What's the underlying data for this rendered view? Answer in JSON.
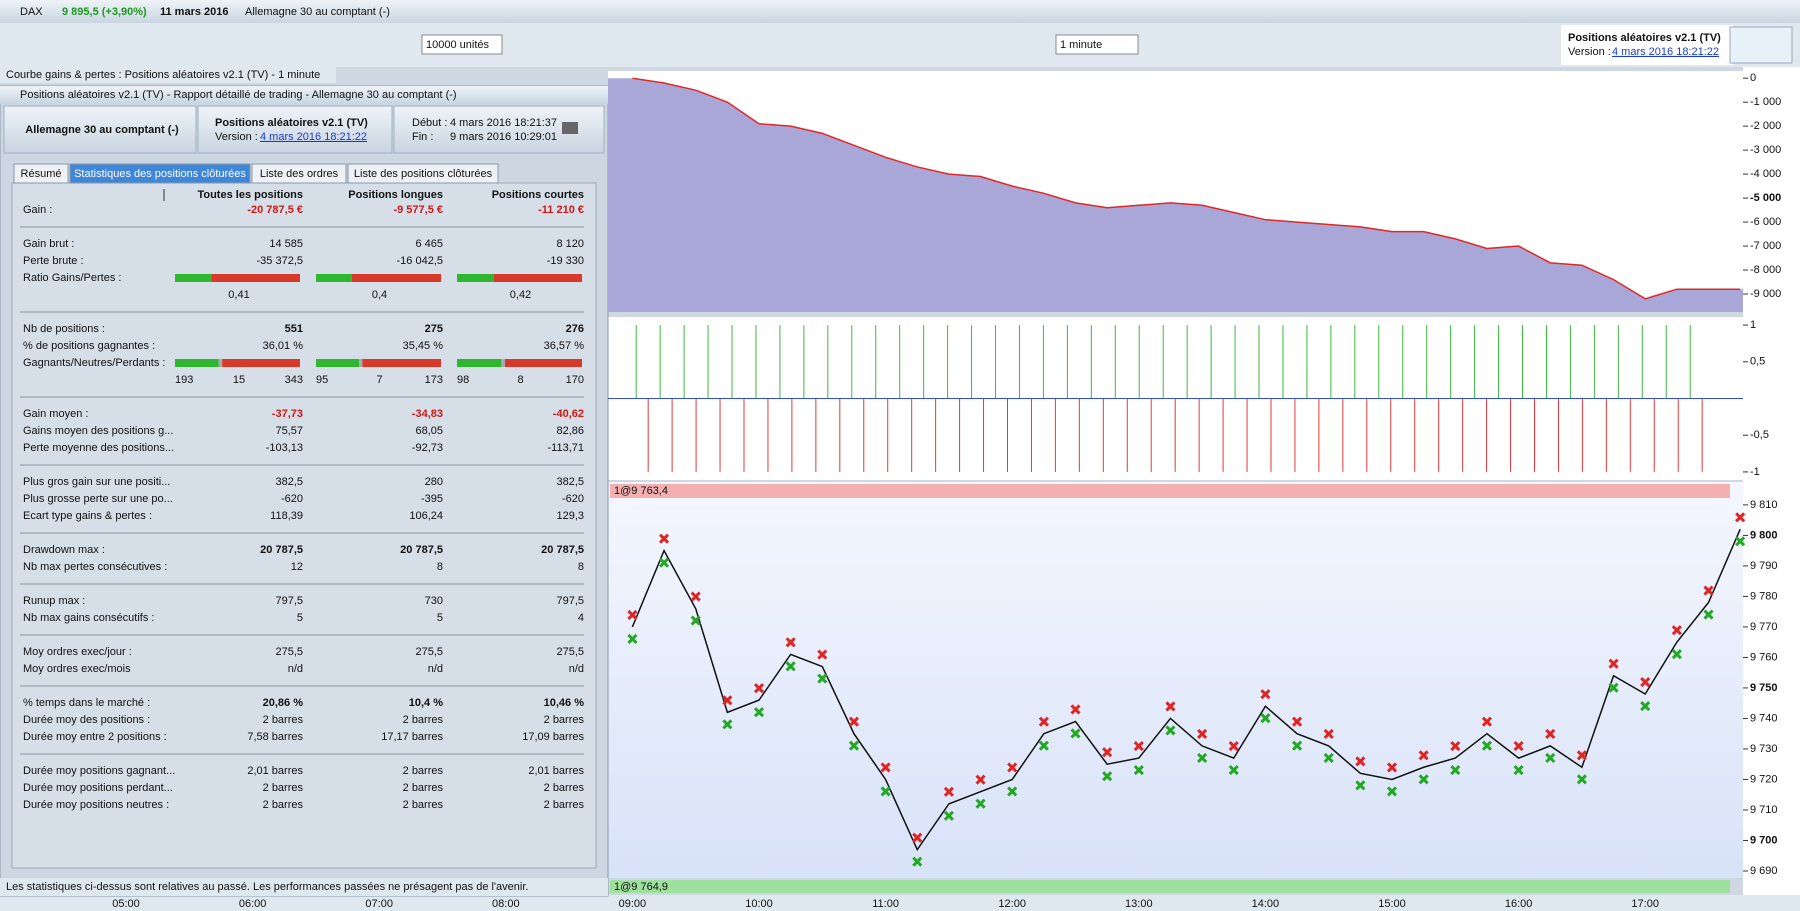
{
  "title_bar": {
    "symbol": "DAX",
    "quote": "9 895,5 (+3,90%)",
    "date": "11 mars 2016",
    "instrument": "Allemagne 30 au comptant (-)"
  },
  "toolbar": {
    "quantity": "10000 unités",
    "timeframe": "1 minute",
    "system": {
      "name": "Positions aléatoires v2.1 (TV)",
      "version_label": "Version :",
      "version": "4 mars 2016 18:21:22"
    }
  },
  "chart_tab": "Courbe gains & pertes : Positions aléatoires v2.1 (TV) - 1 minute",
  "report": {
    "title": "Positions aléatoires v2.1 (TV) - Rapport détaillé de trading - Allemagne 30 au comptant (-)",
    "header": {
      "instrument": "Allemagne 30 au comptant (-)",
      "system": "Positions aléatoires v2.1 (TV)",
      "version_label": "Version :",
      "version": "4 mars 2016 18:21:22",
      "start_label": "Début :",
      "start": "4 mars 2016 18:21:37",
      "end_label": "Fin :",
      "end": "9 mars 2016 10:29:01"
    },
    "tabs": [
      "Résumé",
      "Statistiques des positions clôturées",
      "Liste des ordres",
      "Liste des positions clôturées"
    ],
    "columns": [
      "Toutes les positions",
      "Positions longues",
      "Positions courtes"
    ],
    "groups": [
      [
        {
          "label": "Gain :",
          "values": [
            "-20 787,5 €",
            "-9 577,5 €",
            "-11 210 €"
          ]
        }
      ],
      [
        {
          "label": "Gain brut :",
          "values": [
            "14 585",
            "6 465",
            "8 120"
          ]
        },
        {
          "label": "Perte brute :",
          "values": [
            "-35 372,5",
            "-16 042,5",
            "-19 330"
          ]
        },
        {
          "label": "Ratio Gains/Pertes :",
          "ratio": [
            "0,41",
            "0,4",
            "0,42"
          ]
        }
      ],
      [
        {
          "label": "Nb de positions :",
          "values": [
            "551",
            "275",
            "276"
          ]
        },
        {
          "label": "% de positions gagnantes :",
          "values": [
            "36,01 %",
            "35,45 %",
            "36,57 %"
          ]
        },
        {
          "label": "Gagnants/Neutres/Perdants :",
          "counts": [
            [
              "193",
              "15",
              "343"
            ],
            [
              "95",
              "7",
              "173"
            ],
            [
              "98",
              "8",
              "170"
            ]
          ]
        }
      ],
      [
        {
          "label": "Gain moyen :",
          "values": [
            "-37,73",
            "-34,83",
            "-40,62"
          ]
        },
        {
          "label": "Gains moyen des positions g...",
          "values": [
            "75,57",
            "68,05",
            "82,86"
          ]
        },
        {
          "label": "Perte moyenne des positions...",
          "values": [
            "-103,13",
            "-92,73",
            "-113,71"
          ]
        }
      ],
      [
        {
          "label": "Plus gros gain sur une positi...",
          "values": [
            "382,5",
            "280",
            "382,5"
          ]
        },
        {
          "label": "Plus grosse perte sur une po...",
          "values": [
            "-620",
            "-395",
            "-620"
          ]
        },
        {
          "label": "Ecart type gains & pertes :",
          "values": [
            "118,39",
            "106,24",
            "129,3"
          ]
        }
      ],
      [
        {
          "label": "Drawdown max :",
          "values": [
            "20 787,5",
            "20 787,5",
            "20 787,5"
          ]
        },
        {
          "label": "Nb max pertes consécutives :",
          "values": [
            "12",
            "8",
            "8"
          ]
        }
      ],
      [
        {
          "label": "Runup max :",
          "values": [
            "797,5",
            "730",
            "797,5"
          ]
        },
        {
          "label": "Nb max gains consécutifs :",
          "values": [
            "5",
            "5",
            "4"
          ]
        }
      ],
      [
        {
          "label": "Moy ordres exec/jour :",
          "values": [
            "275,5",
            "275,5",
            "275,5"
          ]
        },
        {
          "label": "Moy ordres exec/mois",
          "values": [
            "n/d",
            "n/d",
            "n/d"
          ]
        }
      ],
      [
        {
          "label": "% temps dans le marché :",
          "values": [
            "20,86 %",
            "10,4 %",
            "10,46 %"
          ]
        },
        {
          "label": "Durée moy des positions :",
          "values": [
            "2 barres",
            "2 barres",
            "2 barres"
          ]
        },
        {
          "label": "Durée moy entre 2 positions :",
          "values": [
            "7,58 barres",
            "17,17 barres",
            "17,09 barres"
          ]
        }
      ],
      [
        {
          "label": "Durée moy positions gagnant...",
          "values": [
            "2,01 barres",
            "2 barres",
            "2,01 barres"
          ]
        },
        {
          "label": "Durée moy positions perdant...",
          "values": [
            "2 barres",
            "2 barres",
            "2 barres"
          ]
        },
        {
          "label": "Durée moy positions neutres :",
          "values": [
            "2 barres",
            "2 barres",
            "2 barres"
          ]
        }
      ]
    ],
    "footer": "Les statistiques ci-dessus sont relatives au passé. Les performances passées ne présagent pas de l'avenir."
  },
  "charts": {
    "equity": {
      "ylim": [
        -9750,
        300
      ],
      "yticks": [
        0,
        {
          "value": -1000,
          "label": "-1 000"
        },
        {
          "value": -2000,
          "label": "-2 000"
        },
        {
          "value": -3000,
          "label": "-3 000"
        },
        {
          "value": -4000,
          "label": "-4 000"
        },
        {
          "value": -5000,
          "label": "-5 000"
        },
        {
          "value": -6000,
          "label": "-6 000"
        },
        {
          "value": -7000,
          "label": "-7 000"
        },
        {
          "value": -8000,
          "label": "-8 000"
        },
        {
          "value": -9000,
          "label": "-9 000"
        }
      ],
      "values": [
        0,
        -200,
        -500,
        -1000,
        -1900,
        -2000,
        -2300,
        -2800,
        -3300,
        -3700,
        -4000,
        -4100,
        -4500,
        -4800,
        -5200,
        -5400,
        -5300,
        -5200,
        -5300,
        -5600,
        -5900,
        -6000,
        -6100,
        -6200,
        -6400,
        -6400,
        -6700,
        -7100,
        -7000,
        -7700,
        -7800,
        -8400,
        -9200,
        -8800,
        -8800,
        -8800
      ]
    },
    "histogram": {
      "ylim": [
        -1.11,
        1.11
      ],
      "yticks": [
        1,
        {
          "value": 0.5,
          "label": "0,5"
        },
        {
          "value": -0.5,
          "label": "-0,5"
        },
        -1
      ],
      "values": [
        1,
        -1,
        1,
        -1,
        1,
        -1,
        1,
        -1,
        1,
        -1,
        1,
        -1,
        1,
        -1,
        1,
        -1,
        1,
        -1,
        1,
        -1,
        1,
        -1,
        1,
        -1,
        1,
        -1,
        1,
        -1,
        1,
        -1,
        1,
        -1,
        1,
        -1,
        1,
        -1,
        1,
        -1,
        1,
        -1,
        1,
        -1,
        1,
        -1,
        1,
        -1,
        1,
        -1,
        1,
        -1,
        1,
        -1,
        1,
        -1,
        1,
        -1,
        1,
        -1,
        1,
        -1,
        1,
        -1,
        1,
        -1,
        1,
        -1,
        1,
        -1,
        1,
        -1,
        1,
        -1,
        1,
        -1,
        1,
        -1,
        1,
        -1,
        1,
        -1,
        1,
        -1,
        1,
        -1,
        1,
        -1,
        1,
        -1,
        1,
        -1
      ]
    },
    "price": {
      "ylim": [
        9687.7,
        9817.5
      ],
      "yticks": [
        {
          "value": 9810,
          "label": "9 810"
        },
        {
          "value": 9800,
          "label": "9 800"
        },
        {
          "value": 9790,
          "label": "9 790"
        },
        {
          "value": 9780,
          "label": "9 780"
        },
        {
          "value": 9770,
          "label": "9 770"
        },
        {
          "value": 9760,
          "label": "9 760"
        },
        {
          "value": 9750,
          "label": "9 750"
        },
        {
          "value": 9740,
          "label": "9 740"
        },
        {
          "value": 9730,
          "label": "9 730"
        },
        {
          "value": 9720,
          "label": "9 720"
        },
        {
          "value": 9710,
          "label": "9 710"
        },
        {
          "value": 9700,
          "label": "9 700"
        },
        {
          "value": 9690,
          "label": "9 690"
        }
      ],
      "values": [
        9770,
        9795,
        9776,
        9742,
        9746,
        9761,
        9757,
        9735,
        9720,
        9697,
        9712,
        9716,
        9720,
        9735,
        9739,
        9725,
        9727,
        9740,
        9731,
        9727,
        9744,
        9735,
        9731,
        9722,
        9720,
        9724,
        9727,
        9735,
        9727,
        9731,
        9724,
        9754,
        9748,
        9765,
        9778,
        9802
      ],
      "top_label": "1@9 763,4",
      "bottom_label": "1@9 764,9"
    },
    "time_labels": [
      "05:00",
      "06:00",
      "07:00",
      "08:00",
      "09:00",
      "10:00",
      "11:00",
      "12:00",
      "13:00",
      "14:00",
      "15:00",
      "16:00",
      "17:00"
    ]
  }
}
